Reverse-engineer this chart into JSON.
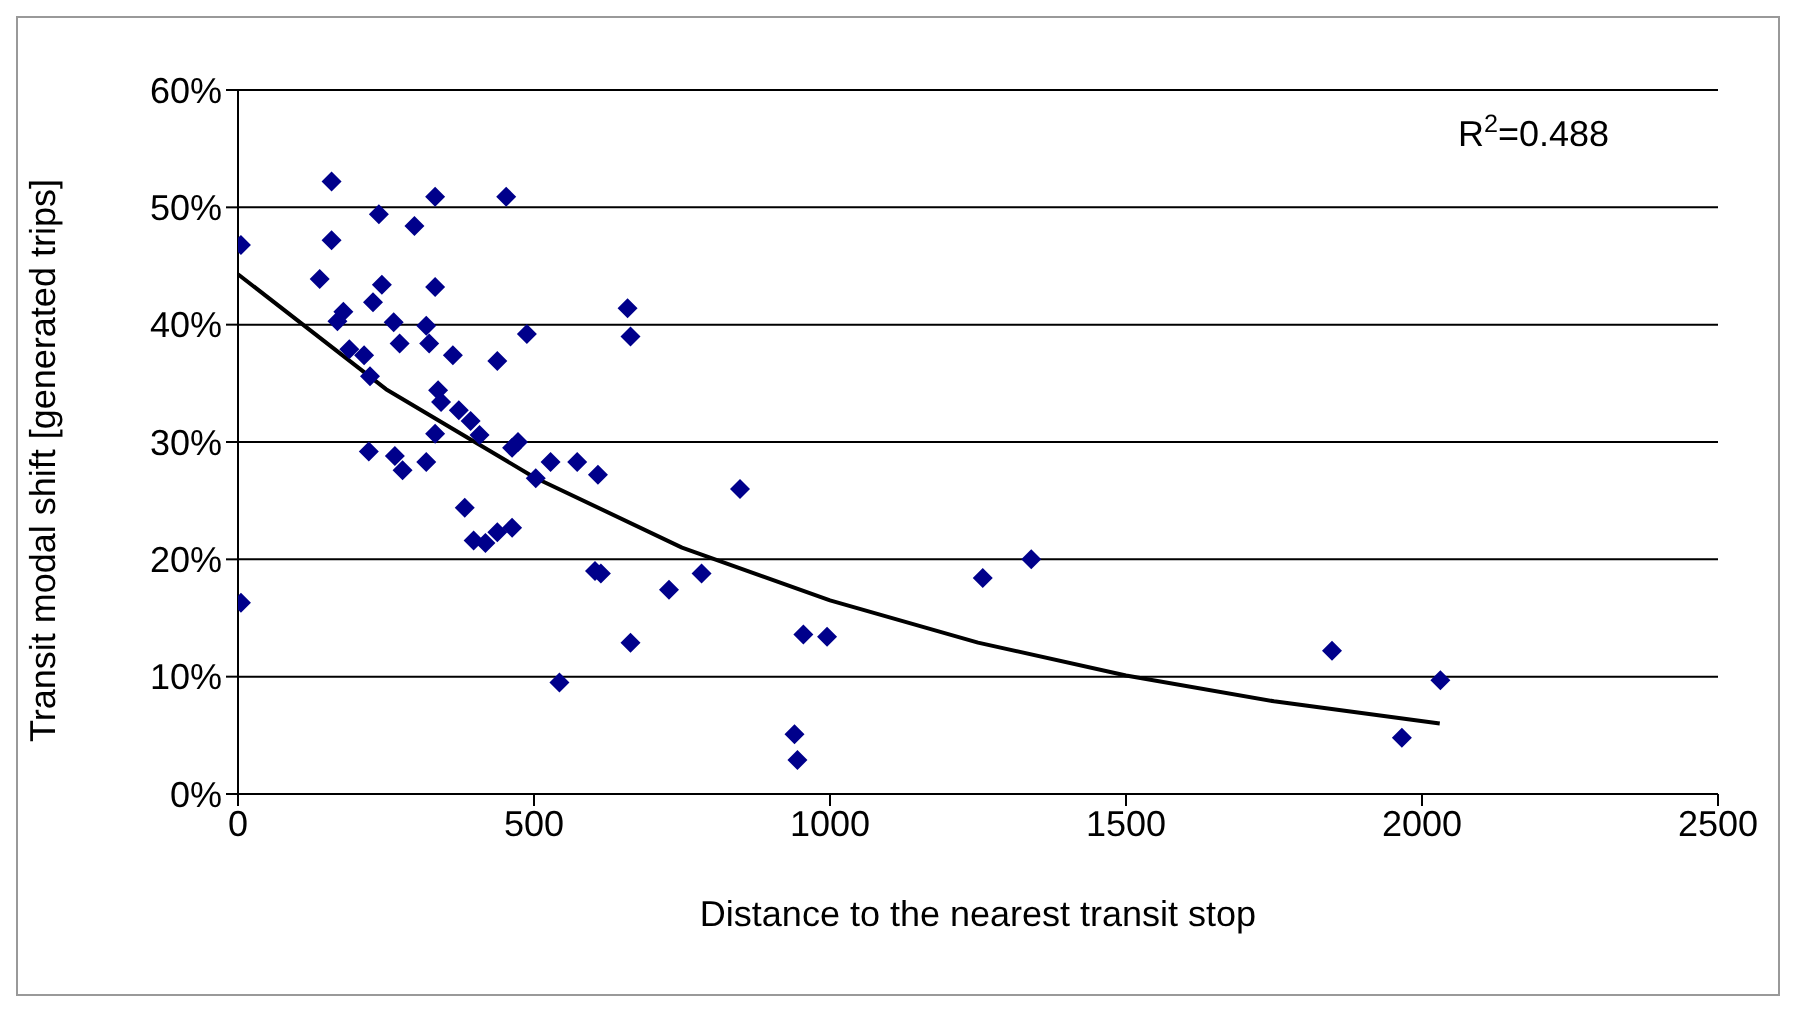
{
  "chart_data": {
    "type": "scatter",
    "xlabel": "Distance to the nearest transit stop",
    "ylabel": "Transit modal shift [generated trips]",
    "xlim": [
      0,
      2500
    ],
    "xticks": [
      0,
      500,
      1000,
      1500,
      2000,
      2500
    ],
    "ylim": [
      0,
      60
    ],
    "yticks": [
      {
        "value": 0,
        "label": "0%"
      },
      {
        "value": 10,
        "label": "10%"
      },
      {
        "value": 20,
        "label": "20%"
      },
      {
        "value": 30,
        "label": "30%"
      },
      {
        "value": 40,
        "label": "40%"
      },
      {
        "value": 50,
        "label": "50%"
      },
      {
        "value": 60,
        "label": "60%"
      }
    ],
    "grid": "y",
    "legend": false,
    "marker": "diamond",
    "annotations": [
      "R$^{2}$=0.488"
    ],
    "series": [
      {
        "color": "#00008b",
        "x": [
          5,
          5,
          158,
          158,
          138,
          168,
          178,
          188,
          213,
          223,
          238,
          243,
          228,
          263,
          273,
          298,
          333,
          333,
          318,
          323,
          363,
          338,
          343,
          373,
          393,
          408,
          333,
          438,
          488,
          453,
          658,
          663,
          848,
          221,
          265,
          278,
          318,
          383,
          398,
          418,
          438,
          463,
          473,
          463,
          503,
          528,
          573,
          608,
          603,
          613,
          543,
          663,
          728,
          783,
          940,
          945,
          955,
          995,
          1258,
          1340,
          1848,
          1966,
          2031
        ],
        "values": [
          46.8,
          16.3,
          52.2,
          47.2,
          43.9,
          40.3,
          41.1,
          37.9,
          37.4,
          35.6,
          49.4,
          43.4,
          41.9,
          40.2,
          38.4,
          48.4,
          50.9,
          43.2,
          39.9,
          38.4,
          37.4,
          34.4,
          33.4,
          32.7,
          31.8,
          30.6,
          30.7,
          36.9,
          39.2,
          50.9,
          41.4,
          39.0,
          26.0,
          29.2,
          28.8,
          27.6,
          28.3,
          24.4,
          21.6,
          21.4,
          22.3,
          22.7,
          30.0,
          29.5,
          26.9,
          28.3,
          28.3,
          27.2,
          19.0,
          18.8,
          9.5,
          12.9,
          17.4,
          18.8,
          5.1,
          2.9,
          13.6,
          13.4,
          18.4,
          20.0,
          12.2,
          4.8,
          9.7
        ]
      },
      {
        "type": "line",
        "color": "#000000",
        "marker": "none",
        "x": [
          0,
          250,
          500,
          750,
          1000,
          1250,
          1500,
          1750,
          2030
        ],
        "values": [
          44.3,
          34.5,
          27,
          21,
          16.5,
          12.9,
          10.1,
          7.9,
          6
        ]
      }
    ]
  }
}
